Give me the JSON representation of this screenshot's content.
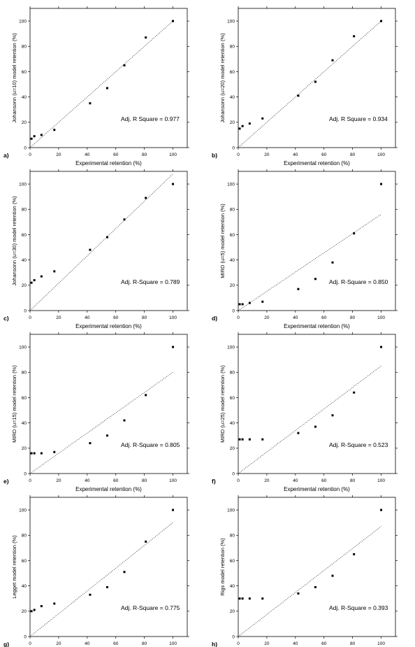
{
  "figure": {
    "xlabel": "Experimental retention (%)",
    "xlim": [
      0,
      110
    ],
    "xticks": [
      0,
      20,
      40,
      60,
      80,
      100
    ],
    "x": [
      1,
      3,
      8,
      17,
      42,
      54,
      66,
      81,
      100
    ]
  },
  "chart_data": [
    {
      "type": "scatter",
      "panel": "a)",
      "xlabel": "Experimental retention (%)",
      "ylabel": "Johansonn (u=10) model retention (%)",
      "xlim": [
        0,
        110
      ],
      "ylim": [
        0,
        110
      ],
      "x": [
        1,
        3,
        8,
        17,
        42,
        54,
        66,
        81,
        100
      ],
      "y": [
        7,
        9,
        10,
        14,
        35,
        47,
        65,
        87,
        100
      ],
      "fit": [
        [
          0,
          0
        ],
        [
          100,
          100
        ]
      ],
      "annotation": "Adj. R Square = 0.977"
    },
    {
      "type": "scatter",
      "panel": "b)",
      "xlabel": "Experimental retention (%)",
      "ylabel": "Johansonn (u=20) model retention (%)",
      "xlim": [
        0,
        110
      ],
      "ylim": [
        0,
        110
      ],
      "x": [
        1,
        3,
        8,
        17,
        42,
        54,
        66,
        81,
        100
      ],
      "y": [
        15,
        17,
        19,
        23,
        41,
        52,
        69,
        88,
        100
      ],
      "fit": [
        [
          0,
          0
        ],
        [
          100,
          100
        ]
      ],
      "annotation": "Adj. R Square = 0.934"
    },
    {
      "type": "scatter",
      "panel": "c)",
      "xlabel": "Experimental retention (%)",
      "ylabel": "Johansonn (u=30) model retention (%)",
      "xlim": [
        0,
        110
      ],
      "ylim": [
        0,
        110
      ],
      "x": [
        1,
        3,
        8,
        17,
        42,
        54,
        66,
        81,
        100
      ],
      "y": [
        22,
        24,
        27,
        31,
        48,
        58,
        72,
        89,
        100
      ],
      "fit": [
        [
          0,
          0
        ],
        [
          100,
          108
        ]
      ],
      "annotation": "Adj. R-Square = 0.789"
    },
    {
      "type": "scatter",
      "panel": "d)",
      "xlabel": "Experimental retention (%)",
      "ylabel": "MIRD (u=5) model retention (%)",
      "xlim": [
        0,
        110
      ],
      "ylim": [
        0,
        110
      ],
      "x": [
        1,
        3,
        8,
        17,
        42,
        54,
        66,
        81,
        100
      ],
      "y": [
        5,
        5,
        6,
        7,
        17,
        25,
        38,
        61,
        100
      ],
      "fit": [
        [
          0,
          0
        ],
        [
          100,
          76
        ]
      ],
      "annotation": "Adj. R-Square = 0.850"
    },
    {
      "type": "scatter",
      "panel": "e)",
      "xlabel": "Experimental retention (%)",
      "ylabel": "MIRD (u=15) model retention (%)",
      "xlim": [
        0,
        110
      ],
      "ylim": [
        0,
        110
      ],
      "x": [
        1,
        3,
        8,
        17,
        42,
        54,
        66,
        81,
        100
      ],
      "y": [
        16,
        16,
        16,
        17,
        24,
        30,
        42,
        62,
        100
      ],
      "fit": [
        [
          0,
          0
        ],
        [
          100,
          80
        ]
      ],
      "annotation": "Adj. R-Square = 0.805"
    },
    {
      "type": "scatter",
      "panel": "f)",
      "xlabel": "Experimental retention (%)",
      "ylabel": "MIRD (u=25) model retention (%)",
      "xlim": [
        0,
        110
      ],
      "ylim": [
        0,
        110
      ],
      "x": [
        1,
        3,
        8,
        17,
        42,
        54,
        66,
        81,
        100
      ],
      "y": [
        27,
        27,
        27,
        27,
        32,
        37,
        46,
        64,
        100
      ],
      "fit": [
        [
          0,
          0
        ],
        [
          100,
          85
        ]
      ],
      "annotation": "Adj. R-Square = 0.523"
    },
    {
      "type": "scatter",
      "panel": "g)",
      "xlabel": "Experimental retention (%)",
      "ylabel": "Legget model retention (%)",
      "xlim": [
        0,
        110
      ],
      "ylim": [
        0,
        110
      ],
      "x": [
        1,
        3,
        8,
        17,
        42,
        54,
        66,
        81,
        100
      ],
      "y": [
        20,
        21,
        24,
        26,
        33,
        39,
        51,
        75,
        100
      ],
      "fit": [
        [
          0,
          0
        ],
        [
          100,
          90
        ]
      ],
      "annotation": "Adj. R-Square = 0.775"
    },
    {
      "type": "scatter",
      "panel": "h)",
      "xlabel": "Experimental retention (%)",
      "ylabel": "Rigs model retention (%)",
      "xlim": [
        0,
        110
      ],
      "ylim": [
        0,
        110
      ],
      "x": [
        1,
        3,
        8,
        17,
        42,
        54,
        66,
        81,
        100
      ],
      "y": [
        30,
        30,
        30,
        30,
        34,
        39,
        48,
        65,
        100
      ],
      "fit": [
        [
          0,
          0
        ],
        [
          100,
          87
        ]
      ],
      "annotation": "Adj. R-Square = 0.393"
    }
  ]
}
